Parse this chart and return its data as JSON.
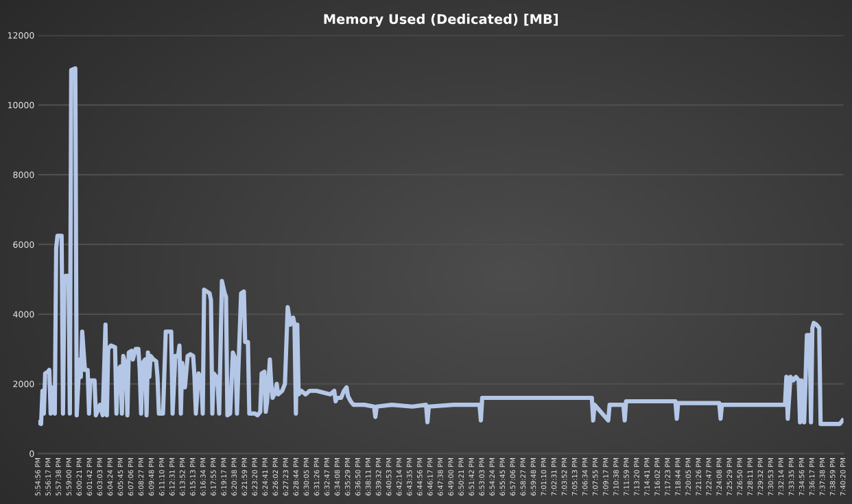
{
  "chart_data": {
    "type": "line",
    "title": "Memory Used (Dedicated) [MB]",
    "x": [
      17.9156,
      17.9216,
      17.9246,
      17.9276,
      17.9305,
      17.9365,
      17.9395,
      17.9425,
      17.9455,
      17.9515,
      17.9545,
      17.9574,
      17.9664,
      17.9694,
      17.9724,
      17.9754,
      17.9814,
      17.9844,
      17.9873,
      17.9963,
      17.9993,
      18.0053,
      18.0083,
      18.0113,
      18.0172,
      18.0232,
      18.0262,
      18.0292,
      18.0382,
      18.0411,
      18.0501,
      18.0561,
      18.0621,
      18.0651,
      18.068,
      18.074,
      18.083,
      18.086,
      18.089,
      18.0949,
      18.0979,
      18.1009,
      18.1069,
      18.1099,
      18.1129,
      18.1189,
      18.1218,
      18.1278,
      18.1338,
      18.1368,
      18.1398,
      18.1428,
      18.1487,
      18.1517,
      18.1547,
      18.1577,
      18.1607,
      18.1667,
      18.1727,
      18.1756,
      18.1786,
      18.1876,
      18.1936,
      18.2055,
      18.2085,
      18.2145,
      18.2205,
      18.2235,
      18.2265,
      18.2294,
      18.2354,
      18.2414,
      18.2474,
      18.2534,
      18.2563,
      18.2593,
      18.2653,
      18.2713,
      18.2743,
      18.2773,
      18.2892,
      18.2922,
      18.2952,
      18.2982,
      18.3042,
      18.3072,
      18.3102,
      18.3161,
      18.3221,
      18.3251,
      18.3281,
      18.3341,
      18.34,
      18.346,
      18.349,
      18.352,
      18.358,
      18.364,
      18.3669,
      18.3729,
      18.3759,
      18.3879,
      18.3938,
      18.3998,
      18.4028,
      18.4088,
      18.4118,
      18.4148,
      18.4207,
      18.4237,
      18.4267,
      18.4327,
      18.4357,
      18.4387,
      18.4476,
      18.4536,
      18.4596,
      18.4656,
      18.4716,
      18.4745,
      18.4775,
      18.4805,
      18.4835,
      18.4895,
      18.4985,
      18.5074,
      18.5224,
      18.5373,
      18.5523,
      18.5612,
      18.5642,
      18.5672,
      18.5762,
      18.5822,
      18.5881,
      18.5911,
      18.5971,
      18.6031,
      18.627,
      18.6479,
      18.6509,
      18.6539,
      18.6868,
      18.7316,
      18.7615,
      18.7645,
      18.7675,
      18.8213,
      18.8781,
      18.8811,
      18.884,
      18.9707,
      19.0604,
      19.1232,
      19.1261,
      19.1291,
      19.159,
      19.162,
      19.1919,
      19.1949,
      19.1979,
      19.2397,
      19.3055,
      19.3085,
      19.3115,
      19.3593,
      19.4011,
      19.4041,
      19.407,
      19.4789,
      19.5446,
      19.5476,
      19.5506,
      19.5566,
      19.5625,
      19.5685,
      19.5745,
      19.5774,
      19.5804,
      19.5864,
      19.5894,
      19.5924,
      19.5984,
      19.6013,
      19.6043,
      19.6073,
      19.6133,
      19.6193,
      19.6223,
      19.6283,
      19.6432,
      19.6641,
      19.6701
    ],
    "series": [
      {
        "color": "#b4c7e7",
        "values": [
          900,
          850,
          1800,
          1150,
          2300,
          2350,
          2400,
          1150,
          1900,
          1150,
          5900,
          6250,
          6250,
          1150,
          4900,
          5100,
          5100,
          1150,
          11000,
          11050,
          1100,
          2700,
          2200,
          3500,
          2400,
          2400,
          1150,
          2100,
          2100,
          1100,
          1400,
          1100,
          3700,
          1100,
          3000,
          3100,
          3050,
          1150,
          2400,
          2500,
          1150,
          2800,
          2500,
          1100,
          2900,
          2950,
          2700,
          3000,
          3000,
          2400,
          1150,
          2600,
          2700,
          1100,
          2900,
          2200,
          2800,
          2700,
          2650,
          2200,
          1150,
          1150,
          3500,
          3500,
          1150,
          2800,
          2800,
          3100,
          1150,
          2600,
          1900,
          2800,
          2850,
          2800,
          2200,
          1150,
          2300,
          2100,
          1150,
          4700,
          4600,
          4400,
          1150,
          2300,
          2200,
          1900,
          1150,
          4950,
          4600,
          4500,
          1100,
          1150,
          2900,
          2700,
          1150,
          2400,
          4600,
          4650,
          3200,
          3200,
          1150,
          1150,
          1100,
          1200,
          2300,
          2350,
          1200,
          1500,
          2700,
          2000,
          1600,
          1750,
          2000,
          1700,
          1800,
          2000,
          4200,
          3700,
          3900,
          3700,
          1150,
          3700,
          1700,
          1800,
          1700,
          1800,
          1800,
          1750,
          1700,
          1800,
          1500,
          1600,
          1600,
          1800,
          1900,
          1650,
          1500,
          1400,
          1400,
          1350,
          1050,
          1350,
          1400,
          1350,
          1400,
          900,
          1350,
          1400,
          1400,
          950,
          1600,
          1600,
          1600,
          1600,
          950,
          1400,
          950,
          1400,
          1400,
          950,
          1500,
          1500,
          1500,
          1000,
          1450,
          1450,
          1450,
          1000,
          1400,
          1400,
          1400,
          2200,
          1000,
          2200,
          2100,
          2200,
          2100,
          900,
          2100,
          900,
          2100,
          3400,
          3400,
          900,
          3600,
          3750,
          3700,
          3600,
          850,
          850,
          850,
          850,
          950
        ]
      }
    ],
    "xlim": [
      17.9156,
      19.6722
    ],
    "xticks": [
      {
        "value": 17.9156,
        "label": "5:54:56 PM"
      },
      {
        "value": 17.9381,
        "label": "5:56:17 PM"
      },
      {
        "value": 17.9606,
        "label": "5:57:38 PM"
      },
      {
        "value": 17.9834,
        "label": "5:59:00 PM"
      },
      {
        "value": 18.0059,
        "label": "6:00:21 PM"
      },
      {
        "value": 18.0284,
        "label": "6:01:42 PM"
      },
      {
        "value": 18.0509,
        "label": "6:03:03 PM"
      },
      {
        "value": 18.0734,
        "label": "6:04:24 PM"
      },
      {
        "value": 18.0959,
        "label": "6:05:45 PM"
      },
      {
        "value": 18.1184,
        "label": "6:07:06 PM"
      },
      {
        "value": 18.1409,
        "label": "6:08:27 PM"
      },
      {
        "value": 18.1634,
        "label": "6:09:48 PM"
      },
      {
        "value": 18.1862,
        "label": "6:11:10 PM"
      },
      {
        "value": 18.2087,
        "label": "6:12:31 PM"
      },
      {
        "value": 18.2312,
        "label": "6:13:52 PM"
      },
      {
        "value": 18.2537,
        "label": "6:15:13 PM"
      },
      {
        "value": 18.2762,
        "label": "6:16:34 PM"
      },
      {
        "value": 18.2987,
        "label": "6:17:55 PM"
      },
      {
        "value": 18.3215,
        "label": "6:19:17 PM"
      },
      {
        "value": 18.344,
        "label": "6:20:38 PM"
      },
      {
        "value": 18.3665,
        "label": "6:21:59 PM"
      },
      {
        "value": 18.389,
        "label": "6:23:20 PM"
      },
      {
        "value": 18.4115,
        "label": "6:24:41 PM"
      },
      {
        "value": 18.434,
        "label": "6:26:02 PM"
      },
      {
        "value": 18.4565,
        "label": "6:27:23 PM"
      },
      {
        "value": 18.479,
        "label": "6:28:44 PM"
      },
      {
        "value": 18.5015,
        "label": "6:30:05 PM"
      },
      {
        "value": 18.524,
        "label": "6:31:26 PM"
      },
      {
        "value": 18.5465,
        "label": "6:32:47 PM"
      },
      {
        "value": 18.569,
        "label": "6:34:08 PM"
      },
      {
        "value": 18.5915,
        "label": "6:35:29 PM"
      },
      {
        "value": 18.614,
        "label": "6:36:50 PM"
      },
      {
        "value": 18.6365,
        "label": "6:38:11 PM"
      },
      {
        "value": 18.659,
        "label": "6:39:32 PM"
      },
      {
        "value": 18.6815,
        "label": "6:40:53 PM"
      },
      {
        "value": 18.704,
        "label": "6:42:14 PM"
      },
      {
        "value": 18.7265,
        "label": "6:43:35 PM"
      },
      {
        "value": 18.749,
        "label": "6:44:56 PM"
      },
      {
        "value": 18.7715,
        "label": "6:46:17 PM"
      },
      {
        "value": 18.794,
        "label": "6:47:38 PM"
      },
      {
        "value": 18.8168,
        "label": "6:49:00 PM"
      },
      {
        "value": 18.8393,
        "label": "6:50:21 PM"
      },
      {
        "value": 18.8618,
        "label": "6:51:42 PM"
      },
      {
        "value": 18.8843,
        "label": "6:53:03 PM"
      },
      {
        "value": 18.9068,
        "label": "6:54:24 PM"
      },
      {
        "value": 18.9293,
        "label": "6:55:45 PM"
      },
      {
        "value": 18.9518,
        "label": "6:57:06 PM"
      },
      {
        "value": 18.9743,
        "label": "6:58:27 PM"
      },
      {
        "value": 18.9968,
        "label": "6:59:48 PM"
      },
      {
        "value": 19.0194,
        "label": "7:01:10 PM"
      },
      {
        "value": 19.0419,
        "label": "7:02:31 PM"
      },
      {
        "value": 19.0644,
        "label": "7:03:52 PM"
      },
      {
        "value": 19.0869,
        "label": "7:05:13 PM"
      },
      {
        "value": 19.1094,
        "label": "7:06:34 PM"
      },
      {
        "value": 19.1319,
        "label": "7:07:55 PM"
      },
      {
        "value": 19.1547,
        "label": "7:09:17 PM"
      },
      {
        "value": 19.1772,
        "label": "7:10:38 PM"
      },
      {
        "value": 19.1997,
        "label": "7:11:59 PM"
      },
      {
        "value": 19.2222,
        "label": "7:13:20 PM"
      },
      {
        "value": 19.2447,
        "label": "7:14:41 PM"
      },
      {
        "value": 19.2672,
        "label": "7:16:02 PM"
      },
      {
        "value": 19.2897,
        "label": "7:17:23 PM"
      },
      {
        "value": 19.3122,
        "label": "7:18:44 PM"
      },
      {
        "value": 19.3347,
        "label": "7:20:05 PM"
      },
      {
        "value": 19.3572,
        "label": "7:21:26 PM"
      },
      {
        "value": 19.3797,
        "label": "7:22:47 PM"
      },
      {
        "value": 19.4022,
        "label": "7:24:08 PM"
      },
      {
        "value": 19.4247,
        "label": "7:25:29 PM"
      },
      {
        "value": 19.4472,
        "label": "7:26:50 PM"
      },
      {
        "value": 19.4697,
        "label": "7:28:11 PM"
      },
      {
        "value": 19.4922,
        "label": "7:29:32 PM"
      },
      {
        "value": 19.5147,
        "label": "7:30:53 PM"
      },
      {
        "value": 19.5372,
        "label": "7:32:14 PM"
      },
      {
        "value": 19.5597,
        "label": "7:33:35 PM"
      },
      {
        "value": 19.5822,
        "label": "7:34:56 PM"
      },
      {
        "value": 19.6047,
        "label": "7:36:17 PM"
      },
      {
        "value": 19.6272,
        "label": "7:37:38 PM"
      },
      {
        "value": 19.6497,
        "label": "7:38:59 PM"
      },
      {
        "value": 19.6722,
        "label": "7:40:20 PM"
      }
    ],
    "ylim": [
      0,
      12000
    ],
    "yticks": [
      0,
      2000,
      4000,
      6000,
      8000,
      10000,
      12000
    ],
    "grid": "y",
    "marker": "none",
    "line_style": "solid"
  }
}
